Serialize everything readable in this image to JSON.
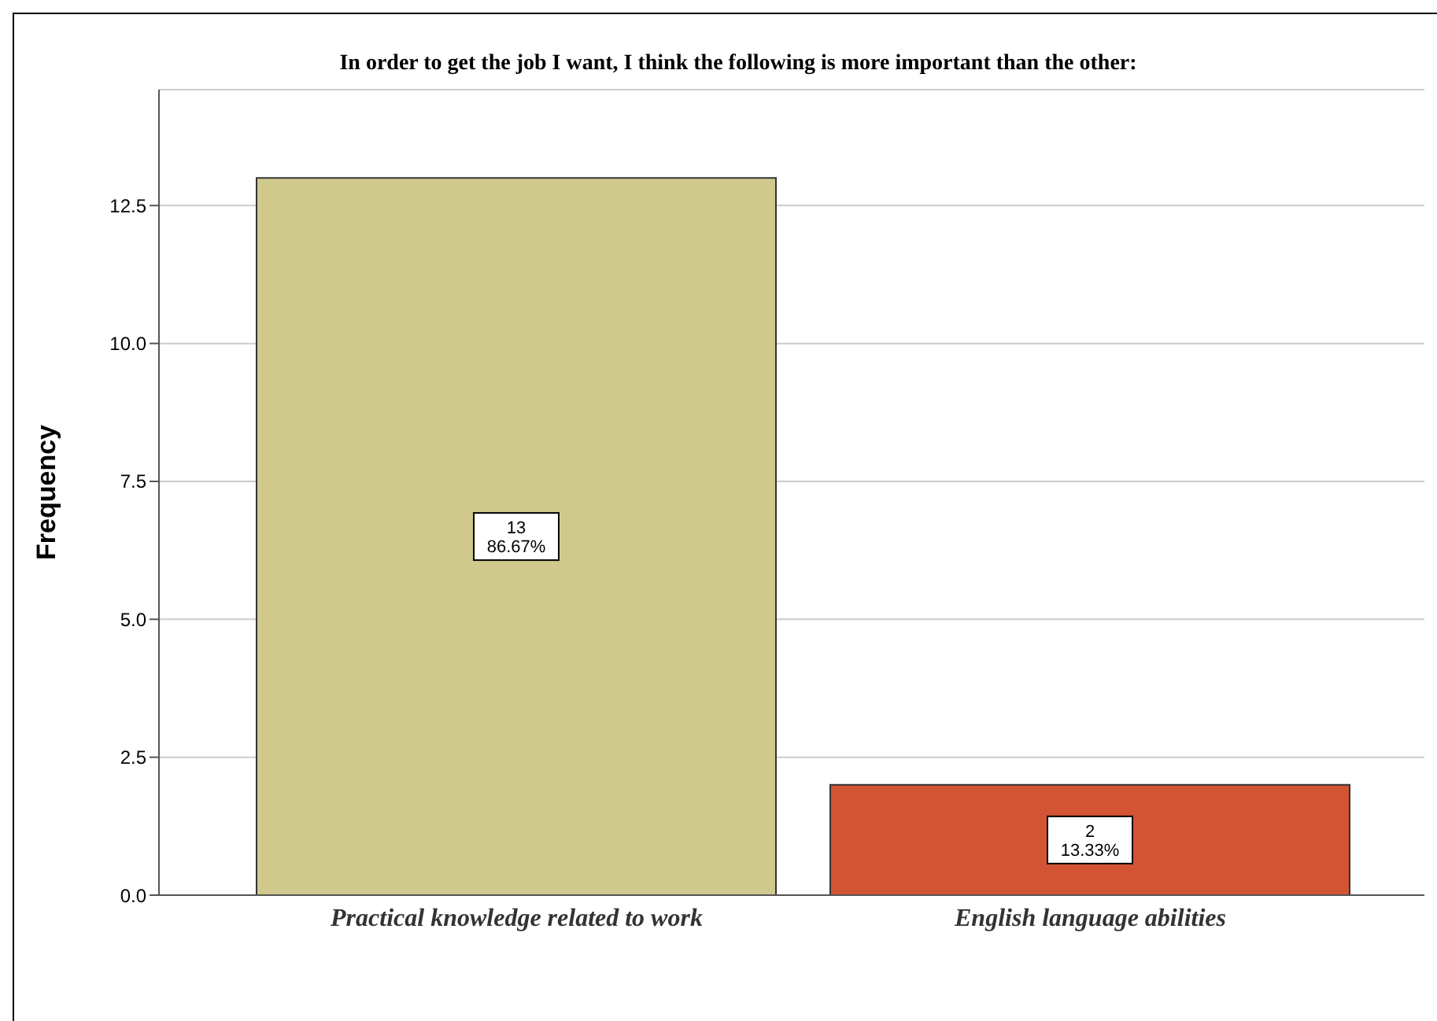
{
  "chart_data": {
    "type": "bar",
    "title": "In order to get the job I want, I think the following is more important than the other:",
    "ylabel": "Frequency",
    "categories": [
      "Practical knowledge related to work",
      "English language abilities"
    ],
    "values": [
      13,
      2
    ],
    "colors": [
      "#d0c98e",
      "#d35434"
    ],
    "value_labels": [
      "13\n86.67%",
      "2\n13.33%"
    ],
    "ylim": [
      0,
      14.6
    ],
    "yticks": [
      {
        "value": 0,
        "label": "0.0"
      },
      {
        "value": 2.5,
        "label": "2.5"
      },
      {
        "value": 5,
        "label": "5.0"
      },
      {
        "value": 7.5,
        "label": "7.5"
      },
      {
        "value": 10,
        "label": "10.0"
      },
      {
        "value": 12.5,
        "label": "12.5"
      }
    ],
    "grid": "y",
    "legend": false
  }
}
